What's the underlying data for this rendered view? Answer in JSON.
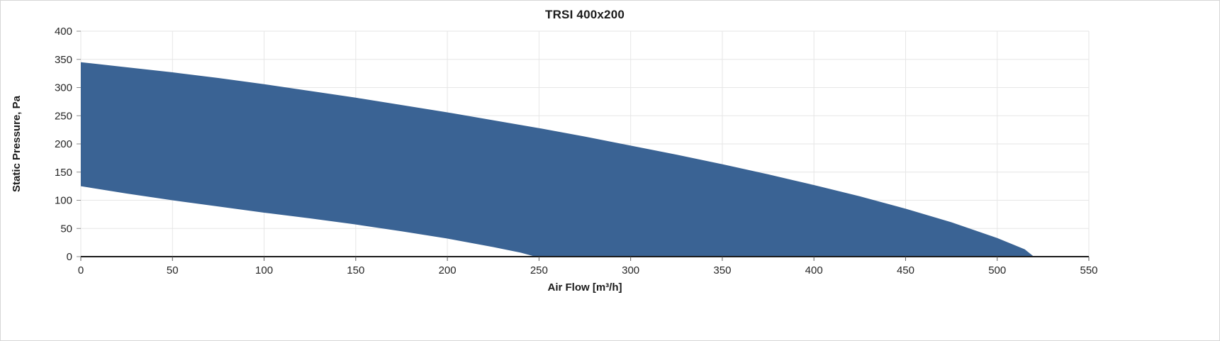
{
  "chart_data": {
    "type": "area",
    "title": "TRSI 400x200",
    "xlabel": "Air Flow  [m³/h]",
    "ylabel": "Static Pressure, Pa",
    "xlim": [
      0,
      550
    ],
    "ylim": [
      0,
      400
    ],
    "x_ticks": [
      0,
      50,
      100,
      150,
      200,
      250,
      300,
      350,
      400,
      450,
      500,
      550
    ],
    "y_ticks": [
      0,
      50,
      100,
      150,
      200,
      250,
      300,
      350,
      400
    ],
    "grid": true,
    "legend": "none",
    "fill_color": "#3a6394",
    "gridline_color": "#e6e6e6",
    "axis_line_color": "#1a1a1a",
    "series": [
      {
        "name": "upper_pressure_limit",
        "points": [
          [
            0,
            345
          ],
          [
            25,
            336
          ],
          [
            50,
            327
          ],
          [
            75,
            317
          ],
          [
            100,
            306
          ],
          [
            125,
            294
          ],
          [
            150,
            282
          ],
          [
            175,
            269
          ],
          [
            200,
            256
          ],
          [
            225,
            242
          ],
          [
            250,
            228
          ],
          [
            275,
            213
          ],
          [
            300,
            197
          ],
          [
            325,
            181
          ],
          [
            350,
            164
          ],
          [
            375,
            146
          ],
          [
            400,
            127
          ],
          [
            425,
            107
          ],
          [
            450,
            85
          ],
          [
            475,
            61
          ],
          [
            500,
            33
          ],
          [
            515,
            13
          ],
          [
            520,
            0
          ]
        ]
      },
      {
        "name": "lower_pressure_limit",
        "points": [
          [
            0,
            125
          ],
          [
            25,
            112
          ],
          [
            50,
            100
          ],
          [
            75,
            89
          ],
          [
            100,
            78
          ],
          [
            125,
            68
          ],
          [
            150,
            57
          ],
          [
            175,
            45
          ],
          [
            200,
            32
          ],
          [
            225,
            17
          ],
          [
            240,
            7
          ],
          [
            248,
            0
          ]
        ]
      }
    ]
  }
}
